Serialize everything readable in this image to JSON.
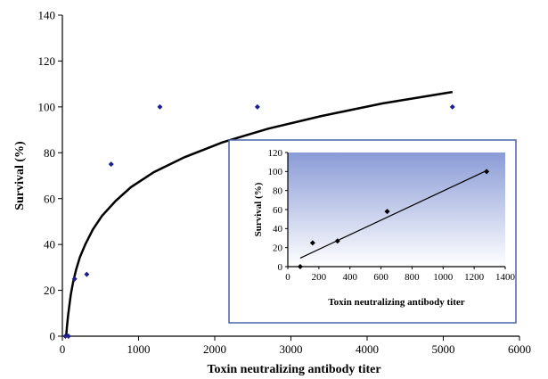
{
  "chart_data": [
    {
      "type": "scatter",
      "title": "",
      "xlabel": "Toxin neutralizing antibody titer",
      "ylabel": "Survival (%)",
      "xlim": [
        0,
        6000
      ],
      "ylim": [
        0,
        140
      ],
      "xticks": [
        0,
        1000,
        2000,
        3000,
        4000,
        5000,
        6000
      ],
      "yticks": [
        0,
        20,
        40,
        60,
        80,
        100,
        120,
        140
      ],
      "grid": false,
      "legend": "none",
      "points": [
        {
          "x": 40,
          "y": 0
        },
        {
          "x": 80,
          "y": 0
        },
        {
          "x": 160,
          "y": 25
        },
        {
          "x": 320,
          "y": 27
        },
        {
          "x": 640,
          "y": 75
        },
        {
          "x": 1280,
          "y": 100
        },
        {
          "x": 2560,
          "y": 100
        },
        {
          "x": 5120,
          "y": 100
        }
      ],
      "fit": {
        "type": "logarithmic",
        "x": [
          50,
          60,
          75,
          90,
          110,
          140,
          180,
          230,
          300,
          400,
          520,
          700,
          900,
          1200,
          1600,
          2100,
          2700,
          3400,
          4200,
          5120
        ],
        "y": [
          0.1,
          4,
          9,
          13,
          18,
          23.5,
          29,
          34.5,
          40,
          46.5,
          52.5,
          59,
          65,
          71.5,
          78,
          84.5,
          90.5,
          96,
          101.5,
          106.5
        ]
      },
      "marker_color": "#1f1f8f",
      "line_color": "#000000"
    },
    {
      "type": "scatter",
      "title": "",
      "xlabel": "Toxin neutralizing antibody titer",
      "ylabel": "Survival (%)",
      "xlim": [
        0,
        1400
      ],
      "ylim": [
        0,
        120
      ],
      "xticks": [
        0,
        200,
        400,
        600,
        800,
        1000,
        1200,
        1400
      ],
      "yticks": [
        0,
        20,
        40,
        60,
        80,
        100,
        120
      ],
      "grid": false,
      "legend": "none",
      "background": "gradient-blue",
      "points": [
        {
          "x": 80,
          "y": 0
        },
        {
          "x": 160,
          "y": 25
        },
        {
          "x": 320,
          "y": 27
        },
        {
          "x": 640,
          "y": 58
        },
        {
          "x": 1280,
          "y": 100
        }
      ],
      "fit": {
        "type": "linear",
        "x": [
          80,
          1280
        ],
        "y": [
          9,
          101
        ]
      },
      "marker_color": "#000000",
      "line_color": "#000000",
      "frame_color": "#4a63a8"
    }
  ]
}
